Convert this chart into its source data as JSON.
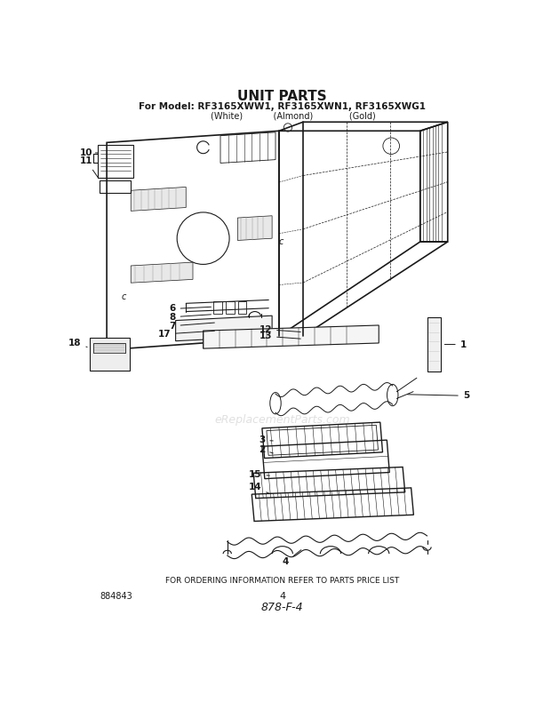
{
  "title_line1": "UNIT PARTS",
  "title_line2": "For Model: RF3165XWW1, RF3165XWN1, RF3165XWG1",
  "title_line3": "        (White)           (Almond)             (Gold)",
  "footer_text": "FOR ORDERING INFORMATION REFER TO PARTS PRICE LIST",
  "bottom_left_num": "884843",
  "bottom_center_num": "4",
  "bottom_italic": "878-F-4",
  "watermark": "eReplacementParts.com",
  "bg_color": "#ffffff",
  "ink_color": "#1a1a1a"
}
